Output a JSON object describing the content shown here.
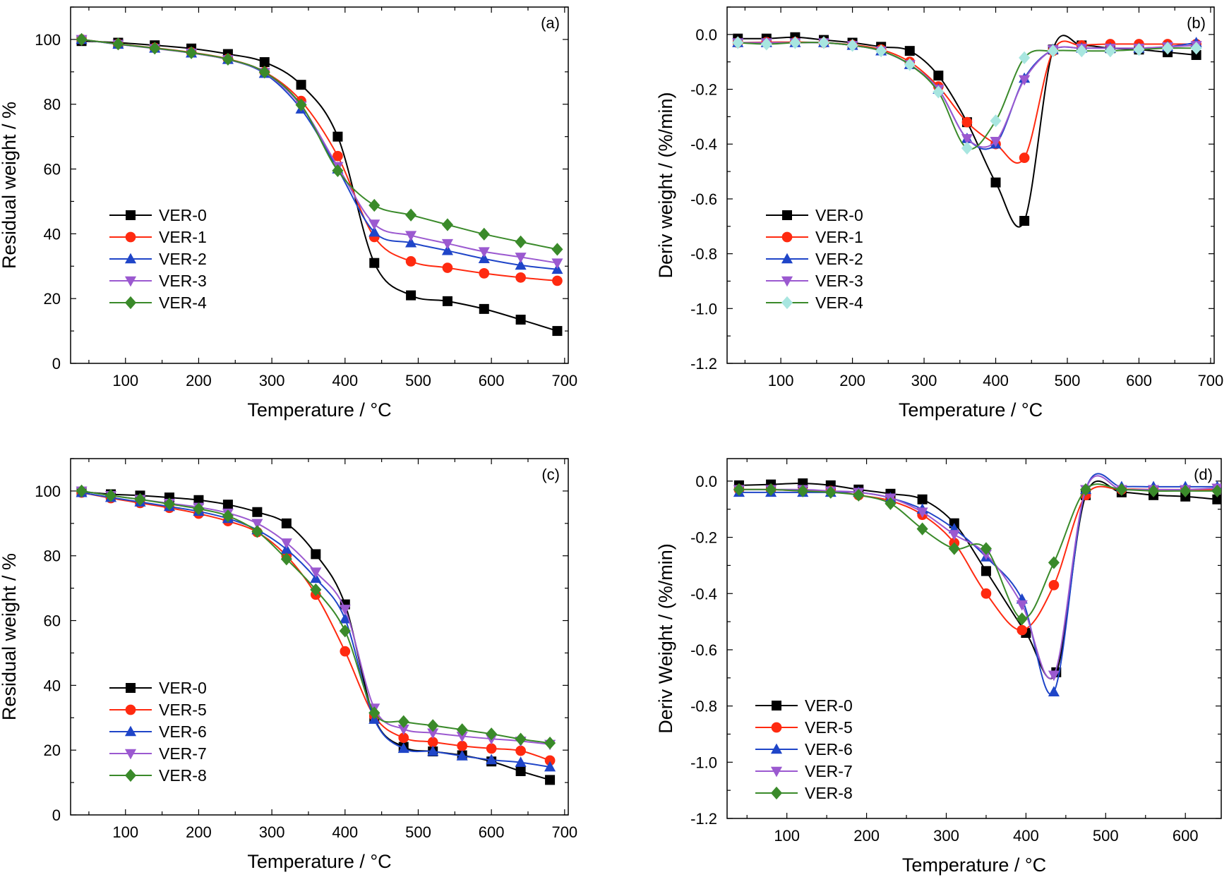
{
  "colors": {
    "VER-0": "#000000",
    "VER-1": "#ff2a10",
    "VER-2": "#1f45c8",
    "VER-3": "#9b59d0",
    "VER-4": "#3a8a2a",
    "VER-4-marker": "#a8e6e0",
    "VER-5": "#ff2a10",
    "VER-6": "#1f45c8",
    "VER-7": "#9b59d0",
    "VER-8": "#3a8a2a"
  },
  "chart_data": [
    {
      "panel": "(a)",
      "type": "line",
      "xlabel": "Temperature / °C",
      "ylabel": "Residual weight / %",
      "xlim": [
        25,
        705
      ],
      "ylim": [
        0,
        110
      ],
      "xticks": [
        100,
        200,
        300,
        400,
        500,
        600,
        700
      ],
      "yticks": [
        0,
        20,
        40,
        60,
        80,
        100
      ],
      "legend_position": "bottom-left",
      "series": [
        {
          "name": "VER-0",
          "marker": "square",
          "x": [
            40,
            90,
            140,
            190,
            240,
            290,
            340,
            390,
            440,
            490,
            540,
            590,
            640,
            690
          ],
          "y": [
            99.5,
            99,
            98.2,
            97.2,
            95.5,
            93,
            86,
            70,
            31,
            21,
            19.2,
            16.8,
            13.5,
            10
          ]
        },
        {
          "name": "VER-1",
          "marker": "circle",
          "x": [
            40,
            90,
            140,
            190,
            240,
            290,
            340,
            390,
            440,
            490,
            540,
            590,
            640,
            690
          ],
          "y": [
            100,
            98.6,
            97.4,
            96,
            94,
            90,
            81,
            64,
            39,
            31.5,
            29.5,
            27.8,
            26.5,
            25.5
          ]
        },
        {
          "name": "VER-2",
          "marker": "triangle-up",
          "x": [
            40,
            90,
            140,
            190,
            240,
            290,
            340,
            390,
            440,
            490,
            540,
            590,
            640,
            690
          ],
          "y": [
            100,
            98.5,
            97.3,
            95.8,
            93.8,
            89.5,
            78.5,
            60,
            40.5,
            37.2,
            34.8,
            32.3,
            30.3,
            29
          ]
        },
        {
          "name": "VER-3",
          "marker": "triangle-down",
          "x": [
            40,
            90,
            140,
            190,
            240,
            290,
            340,
            390,
            440,
            490,
            540,
            590,
            640,
            690
          ],
          "y": [
            100,
            98.5,
            97.2,
            95.8,
            93.8,
            89.8,
            79.5,
            60.8,
            43,
            39.5,
            37,
            34.5,
            32.8,
            31
          ]
        },
        {
          "name": "VER-4",
          "marker": "diamond",
          "x": [
            40,
            90,
            140,
            190,
            240,
            290,
            340,
            390,
            440,
            490,
            540,
            590,
            640,
            690
          ],
          "y": [
            100,
            98.6,
            97.3,
            95.9,
            93.9,
            89.9,
            79.8,
            59.5,
            48.8,
            45.8,
            42.8,
            39.9,
            37.5,
            35.2
          ]
        }
      ]
    },
    {
      "panel": "(b)",
      "type": "line",
      "xlabel": "Temperature / °C",
      "ylabel": "Deriv weight / (%/min)",
      "xlim": [
        25,
        705
      ],
      "ylim": [
        -1.2,
        0.1
      ],
      "xticks": [
        100,
        200,
        300,
        400,
        500,
        600,
        700
      ],
      "yticks": [
        0.0,
        -0.2,
        -0.4,
        -0.6,
        -0.8,
        -1.0,
        -1.2
      ],
      "legend_position": "bottom-left",
      "series": [
        {
          "name": "VER-0",
          "marker": "square",
          "x": [
            40,
            80,
            120,
            160,
            200,
            240,
            280,
            320,
            360,
            400,
            440,
            480,
            520,
            560,
            600,
            640,
            680
          ],
          "y": [
            -0.015,
            -0.015,
            -0.01,
            -0.02,
            -0.03,
            -0.045,
            -0.06,
            -0.15,
            -0.32,
            -0.54,
            -0.68,
            -0.055,
            -0.04,
            -0.05,
            -0.055,
            -0.065,
            -0.075
          ]
        },
        {
          "name": "VER-1",
          "marker": "circle",
          "x": [
            40,
            80,
            120,
            160,
            200,
            240,
            280,
            320,
            360,
            400,
            440,
            480,
            520,
            560,
            600,
            640,
            680
          ],
          "y": [
            -0.03,
            -0.028,
            -0.028,
            -0.03,
            -0.038,
            -0.055,
            -0.1,
            -0.19,
            -0.32,
            -0.4,
            -0.45,
            -0.06,
            -0.04,
            -0.035,
            -0.035,
            -0.035,
            -0.035
          ]
        },
        {
          "name": "VER-2",
          "marker": "triangle-up",
          "x": [
            40,
            80,
            120,
            160,
            200,
            240,
            280,
            320,
            360,
            400,
            440,
            480,
            520,
            560,
            600,
            640,
            680
          ],
          "y": [
            -0.03,
            -0.03,
            -0.03,
            -0.03,
            -0.04,
            -0.06,
            -0.11,
            -0.2,
            -0.38,
            -0.4,
            -0.16,
            -0.055,
            -0.05,
            -0.05,
            -0.05,
            -0.045,
            -0.03
          ]
        },
        {
          "name": "VER-3",
          "marker": "triangle-down",
          "x": [
            40,
            80,
            120,
            160,
            200,
            240,
            280,
            320,
            360,
            400,
            440,
            480,
            520,
            560,
            600,
            640,
            680
          ],
          "y": [
            -0.03,
            -0.03,
            -0.03,
            -0.03,
            -0.04,
            -0.06,
            -0.11,
            -0.2,
            -0.38,
            -0.39,
            -0.165,
            -0.055,
            -0.05,
            -0.05,
            -0.05,
            -0.045,
            -0.04
          ]
        },
        {
          "name": "VER-4",
          "marker": "diamond",
          "x": [
            40,
            80,
            120,
            160,
            200,
            240,
            280,
            320,
            360,
            400,
            440,
            480,
            520,
            560,
            600,
            640,
            680
          ],
          "y": [
            -0.03,
            -0.035,
            -0.03,
            -0.03,
            -0.04,
            -0.06,
            -0.11,
            -0.21,
            -0.415,
            -0.315,
            -0.085,
            -0.06,
            -0.06,
            -0.06,
            -0.055,
            -0.05,
            -0.05
          ]
        }
      ]
    },
    {
      "panel": "(c)",
      "type": "line",
      "xlabel": "Temperature / °C",
      "ylabel": "Residual weight / %",
      "xlim": [
        25,
        705
      ],
      "ylim": [
        0,
        110
      ],
      "xticks": [
        100,
        200,
        300,
        400,
        500,
        600,
        700
      ],
      "yticks": [
        0,
        20,
        40,
        60,
        80,
        100
      ],
      "legend_position": "bottom-left",
      "series": [
        {
          "name": "VER-0",
          "marker": "square",
          "x": [
            40,
            80,
            120,
            160,
            200,
            240,
            280,
            320,
            360,
            400,
            440,
            480,
            520,
            560,
            600,
            640,
            680
          ],
          "y": [
            99.8,
            99,
            98.6,
            98,
            97.2,
            95.8,
            93.5,
            90,
            80.5,
            65,
            30,
            21,
            19.6,
            18.4,
            16.5,
            13.5,
            10.8
          ]
        },
        {
          "name": "VER-5",
          "marker": "circle",
          "x": [
            40,
            80,
            120,
            160,
            200,
            240,
            280,
            320,
            360,
            400,
            440,
            480,
            520,
            560,
            600,
            640,
            680
          ],
          "y": [
            99.5,
            97.8,
            96.3,
            94.8,
            93,
            90.7,
            87.3,
            80,
            68,
            50.5,
            30.5,
            23.8,
            22.5,
            21.3,
            20.5,
            19.8,
            16.8
          ]
        },
        {
          "name": "VER-6",
          "marker": "triangle-up",
          "x": [
            40,
            80,
            120,
            160,
            200,
            240,
            280,
            320,
            360,
            400,
            440,
            480,
            520,
            560,
            600,
            640,
            680
          ],
          "y": [
            99.5,
            98,
            96.6,
            95.2,
            93.7,
            91.5,
            88,
            82,
            73,
            60.5,
            29.5,
            20.5,
            19.6,
            18.2,
            17,
            16.2,
            14.8
          ]
        },
        {
          "name": "VER-7",
          "marker": "triangle-down",
          "x": [
            40,
            80,
            120,
            160,
            200,
            240,
            280,
            320,
            360,
            400,
            440,
            480,
            520,
            560,
            600,
            640,
            680
          ],
          "y": [
            100,
            98.6,
            97.4,
            96.2,
            95,
            93.2,
            90,
            84,
            75,
            63.5,
            33,
            26.5,
            25.3,
            24.3,
            23.5,
            22.8,
            21.8
          ]
        },
        {
          "name": "VER-8",
          "marker": "diamond",
          "x": [
            40,
            80,
            120,
            160,
            200,
            240,
            280,
            320,
            360,
            400,
            440,
            480,
            520,
            560,
            600,
            640,
            680
          ],
          "y": [
            100,
            98.6,
            97.4,
            96,
            94.5,
            92.3,
            87.5,
            79,
            69.5,
            56.8,
            31.5,
            28.8,
            27.6,
            26.3,
            25,
            23.4,
            22.2
          ]
        }
      ]
    },
    {
      "panel": "(d)",
      "type": "line",
      "xlabel": "Temperature / °C",
      "ylabel": "Deriv Weight / (%/min)",
      "xlim": [
        25,
        645
      ],
      "ylim": [
        -1.2,
        0.08
      ],
      "xticks": [
        100,
        200,
        300,
        400,
        500,
        600
      ],
      "yticks": [
        0.0,
        -0.2,
        -0.4,
        -0.6,
        -0.8,
        -1.0,
        -1.2
      ],
      "legend_position": "bottom-left",
      "series": [
        {
          "name": "VER-0",
          "marker": "square",
          "x": [
            40,
            80,
            120,
            155,
            190,
            230,
            270,
            310,
            350,
            400,
            438,
            475,
            520,
            560,
            600,
            640
          ],
          "y": [
            -0.015,
            -0.012,
            -0.008,
            -0.015,
            -0.03,
            -0.045,
            -0.065,
            -0.15,
            -0.32,
            -0.54,
            -0.68,
            -0.05,
            -0.04,
            -0.05,
            -0.055,
            -0.065
          ]
        },
        {
          "name": "VER-5",
          "marker": "circle",
          "x": [
            40,
            80,
            120,
            155,
            190,
            230,
            270,
            310,
            350,
            395,
            435,
            475,
            520,
            560,
            600,
            640
          ],
          "y": [
            -0.03,
            -0.03,
            -0.035,
            -0.035,
            -0.05,
            -0.07,
            -0.12,
            -0.22,
            -0.4,
            -0.53,
            -0.37,
            -0.05,
            -0.03,
            -0.03,
            -0.03,
            -0.03
          ]
        },
        {
          "name": "VER-6",
          "marker": "triangle-up",
          "x": [
            40,
            80,
            120,
            155,
            190,
            230,
            270,
            310,
            350,
            395,
            435,
            475,
            520,
            560,
            600,
            640
          ],
          "y": [
            -0.04,
            -0.04,
            -0.04,
            -0.04,
            -0.04,
            -0.06,
            -0.1,
            -0.17,
            -0.27,
            -0.42,
            -0.75,
            -0.03,
            -0.02,
            -0.02,
            -0.02,
            -0.02
          ]
        },
        {
          "name": "VER-7",
          "marker": "triangle-down",
          "x": [
            40,
            80,
            120,
            155,
            190,
            230,
            270,
            310,
            350,
            395,
            435,
            475,
            520,
            560,
            600,
            640
          ],
          "y": [
            -0.03,
            -0.03,
            -0.03,
            -0.035,
            -0.04,
            -0.06,
            -0.11,
            -0.19,
            -0.26,
            -0.44,
            -0.69,
            -0.03,
            -0.03,
            -0.03,
            -0.03,
            -0.025
          ]
        },
        {
          "name": "VER-8",
          "marker": "diamond",
          "x": [
            40,
            80,
            120,
            155,
            190,
            230,
            270,
            310,
            350,
            395,
            435,
            475,
            520,
            560,
            600,
            640
          ],
          "y": [
            -0.03,
            -0.03,
            -0.035,
            -0.04,
            -0.05,
            -0.08,
            -0.17,
            -0.24,
            -0.24,
            -0.49,
            -0.29,
            -0.03,
            -0.03,
            -0.035,
            -0.035,
            -0.035
          ]
        }
      ]
    }
  ]
}
